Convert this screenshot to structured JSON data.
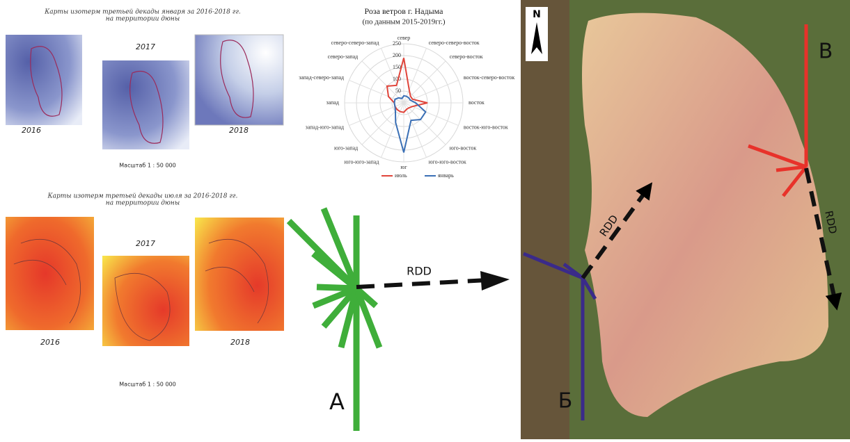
{
  "january_maps": {
    "title": [
      "Карты изотерм третьей декады января за 2016-2018 гг.",
      "на территории дюны"
    ],
    "years": [
      "2016",
      "2017",
      "2018"
    ],
    "scale": "Масштаб 1 : 50 000"
  },
  "july_maps": {
    "title": [
      "Карты изотерм третьей декады июля за 2016-2018 гг.",
      "на территории дюны"
    ],
    "years": [
      "2016",
      "2017",
      "2018"
    ],
    "scale": "Масштаб 1 : 50 000"
  },
  "chart_data": {
    "type": "radar",
    "title": "Роза ветров г. Надыма",
    "subtitle": "(по данным 2015-2019гг.)",
    "categories": [
      "север",
      "северо-северо-восток",
      "северо-восток",
      "восток-северо-восток",
      "восток",
      "восток-юго-восток",
      "юго-восток",
      "юго-юго-восток",
      "юг",
      "юго-юго-запад",
      "юго-запад",
      "запад-юго-запад",
      "запад",
      "запад-северо-запад",
      "северо-запад",
      "северо-северо-запад"
    ],
    "series": [
      {
        "name": "июль",
        "color": "#e0443a",
        "values": [
          190,
          60,
          40,
          40,
          100,
          40,
          30,
          30,
          40,
          40,
          40,
          40,
          40,
          70,
          100,
          80
        ]
      },
      {
        "name": "январь",
        "color": "#3a6fb5",
        "values": [
          30,
          30,
          30,
          30,
          50,
          100,
          100,
          80,
          210,
          90,
          50,
          40,
          40,
          40,
          30,
          20
        ]
      }
    ],
    "ylim": [
      0,
      250
    ],
    "yticks": [
      50,
      100,
      150,
      200,
      250
    ],
    "grid": true
  },
  "diagram": {
    "rose_label": "А",
    "rdd_label": "RDD",
    "north": "N",
    "map_rdd_1": "RDD",
    "map_rdd_2": "RDD",
    "point_b": "Б",
    "point_v": "В"
  }
}
